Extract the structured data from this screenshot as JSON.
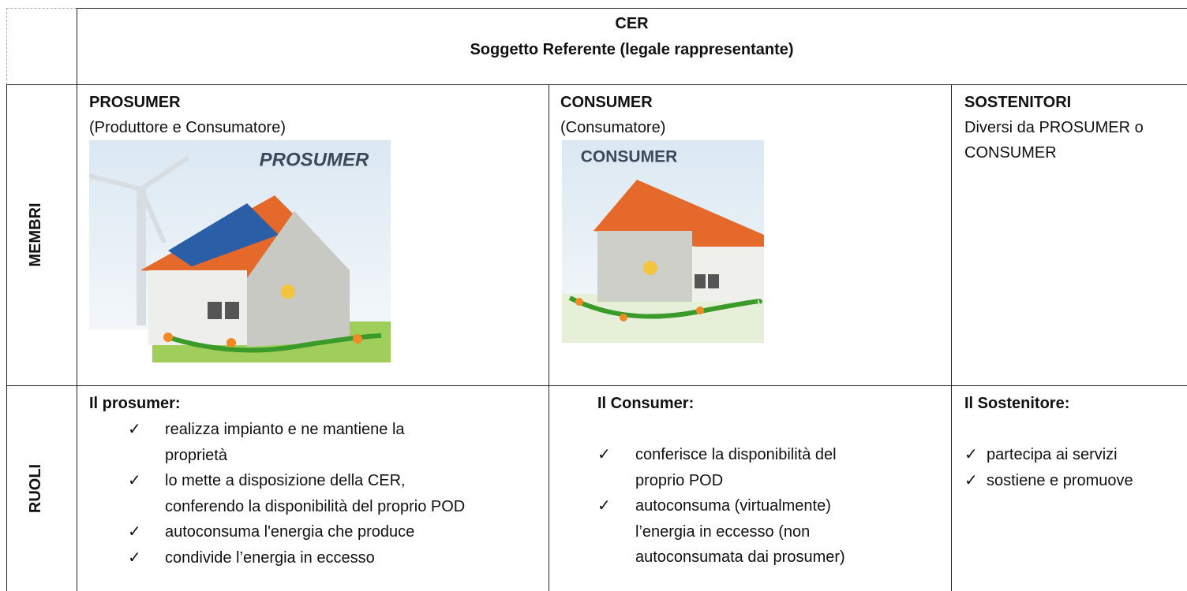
{
  "header": {
    "title": "CER",
    "subtitle": "Soggetto Referente (legale rappresentante)"
  },
  "check": "✓",
  "membri": {
    "label": "MEMBRI",
    "prosumer": {
      "title": "PROSUMER",
      "subtitle": "(Produttore e Consumatore)",
      "image_label": "PROSUMER"
    },
    "consumer": {
      "title": "CONSUMER",
      "subtitle": "(Consumatore)",
      "image_label": "CONSUMER"
    },
    "sostenitori": {
      "title": "SOSTENITORI",
      "subtitle": "Diversi da PROSUMER o CONSUMER"
    }
  },
  "ruoli": {
    "label": "RUOLI",
    "prosumer": {
      "heading": "Il prosumer:",
      "items": [
        [
          "realizza impianto e ne mantiene la",
          "proprietà"
        ],
        [
          "lo mette a disposizione della CER,",
          "conferendo la disponibilità del proprio POD"
        ],
        [
          "autoconsuma l'energia che produce"
        ],
        [
          "condivide l’energia in eccesso"
        ]
      ]
    },
    "consumer": {
      "heading": "Il Consumer:",
      "items": [
        [
          "conferisce la disponibilità del",
          "proprio POD"
        ],
        [
          "autoconsuma (virtualmente)",
          "l’energia in eccesso (non",
          "autoconsumata dai prosumer)"
        ]
      ]
    },
    "sostenitore": {
      "heading": "Il Sostenitore:",
      "items": [
        [
          "partecipa ai servizi"
        ],
        [
          "sostiene e promuove"
        ]
      ]
    }
  }
}
